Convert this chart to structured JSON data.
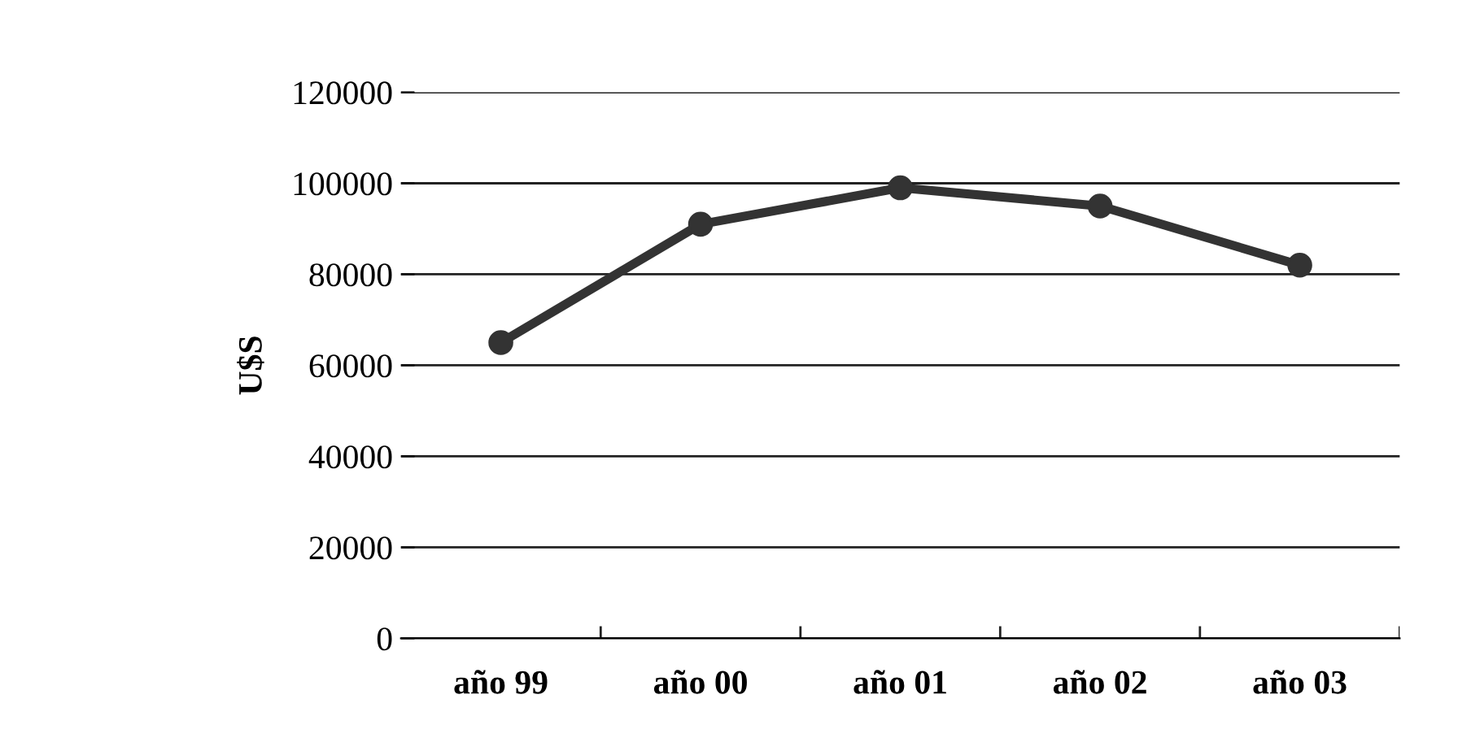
{
  "chart_data": {
    "type": "line",
    "ylabel": "U$S",
    "categories": [
      "año 99",
      "año 00",
      "año 01",
      "año 02",
      "año 03"
    ],
    "series": [
      {
        "color": "#333333",
        "values": [
          65000,
          91000,
          99000,
          95000,
          82000
        ]
      }
    ],
    "ylim": [
      0,
      120000
    ],
    "yticks": [
      0,
      20000,
      40000,
      60000,
      80000,
      100000,
      120000
    ],
    "grid": "y",
    "marker": "circle",
    "line_style": "solid"
  }
}
